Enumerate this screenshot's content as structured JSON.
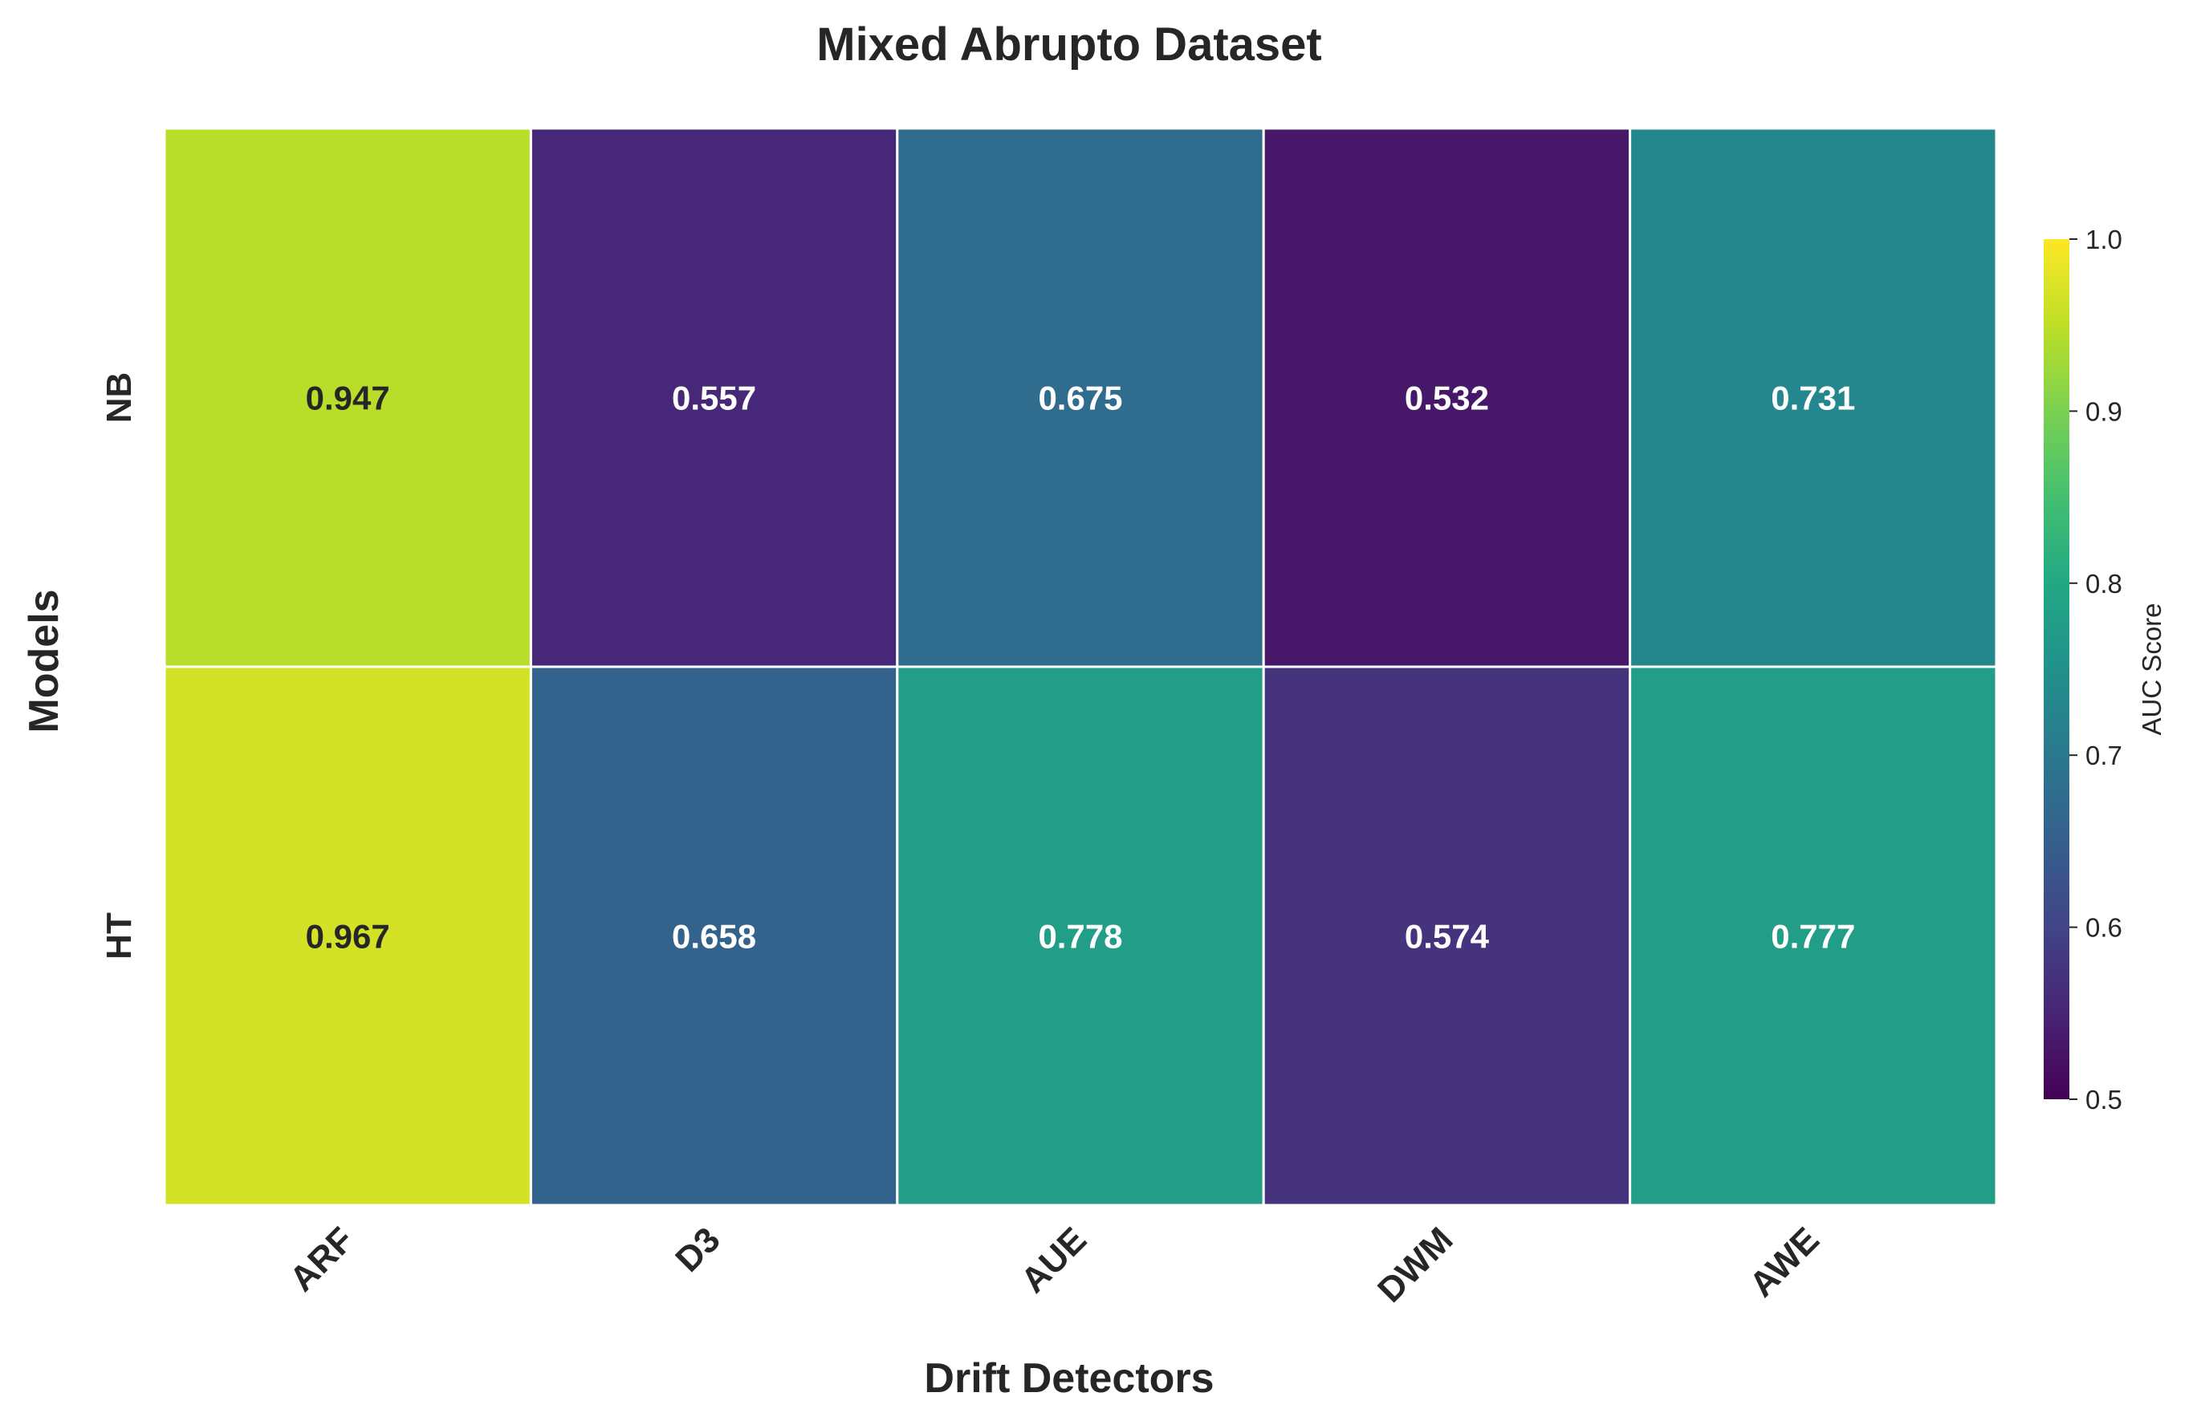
{
  "chart_data": {
    "type": "heatmap",
    "title": "Mixed Abrupto Dataset",
    "xlabel": "Drift Detectors",
    "ylabel": "Models",
    "x_categories": [
      "ARF",
      "D3",
      "AUE",
      "DWM",
      "AWE"
    ],
    "y_categories": [
      "NB",
      "HT"
    ],
    "values": [
      [
        0.947,
        0.557,
        0.675,
        0.532,
        0.731
      ],
      [
        0.967,
        0.658,
        0.778,
        0.574,
        0.777
      ]
    ],
    "value_labels": [
      [
        "0.947",
        "0.557",
        "0.675",
        "0.532",
        "0.731"
      ],
      [
        "0.967",
        "0.658",
        "0.778",
        "0.574",
        "0.777"
      ]
    ],
    "colorbar": {
      "label": "AUC Score",
      "range": [
        0.5,
        1.0
      ],
      "ticks": [
        0.5,
        0.6,
        0.7,
        0.8,
        0.9,
        1.0
      ],
      "tick_labels": [
        "0.5",
        "0.6",
        "0.7",
        "0.8",
        "0.9",
        "1.0"
      ],
      "colormap": "viridis"
    },
    "grid": false
  }
}
